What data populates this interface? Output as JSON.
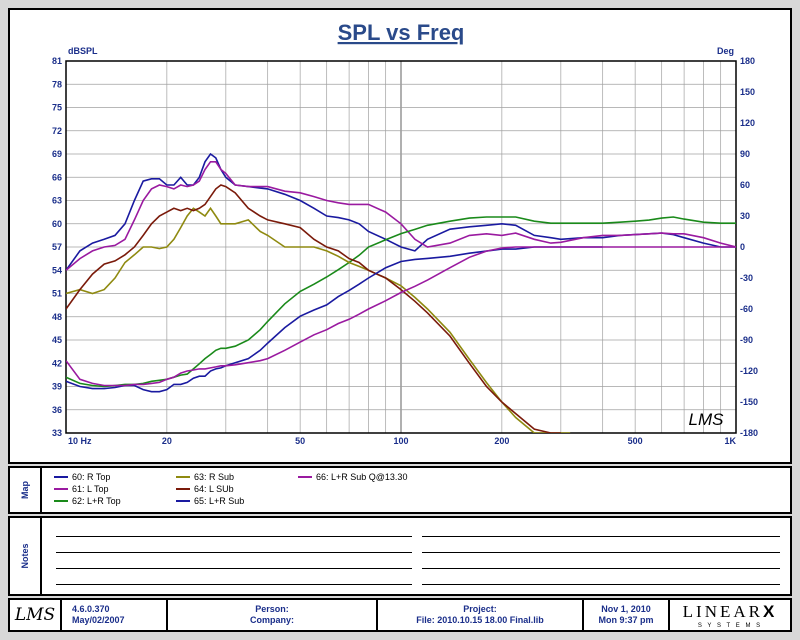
{
  "chart_data": {
    "type": "line",
    "title": "SPL vs Freq",
    "ylabel_left": "dBSPL",
    "ylabel_right": "Deg",
    "x_scale": "log",
    "xlim": [
      10,
      1000
    ],
    "ylim": [
      33,
      81
    ],
    "y2lim": [
      -180,
      180
    ],
    "x_tick_labels": [
      {
        "v": 10,
        "t": "10  Hz"
      },
      {
        "v": 20,
        "t": "20"
      },
      {
        "v": 50,
        "t": "50"
      },
      {
        "v": 100,
        "t": "100"
      },
      {
        "v": 200,
        "t": "200"
      },
      {
        "v": 500,
        "t": "500"
      },
      {
        "v": 1000,
        "t": "1K"
      }
    ],
    "y_ticks": [
      33,
      36,
      39,
      42,
      45,
      48,
      51,
      54,
      57,
      60,
      63,
      66,
      69,
      72,
      75,
      78,
      81
    ],
    "y2_ticks": [
      -180,
      -150,
      -120,
      -90,
      -60,
      -30,
      0,
      30,
      60,
      90,
      120,
      150,
      180
    ],
    "grid": true,
    "watermark": "LMS",
    "series": [
      {
        "name": "60: R Top",
        "color": "#1a1aa0",
        "x": [
          10,
          11,
          12,
          13,
          14,
          15,
          16,
          17,
          18,
          19,
          20,
          21,
          22,
          23,
          24,
          25,
          26,
          27,
          28,
          29,
          30,
          32,
          35,
          38,
          40,
          45,
          50,
          55,
          60,
          65,
          70,
          75,
          80,
          90,
          100,
          110,
          120,
          140,
          160,
          180,
          200,
          220,
          250,
          280,
          300,
          350,
          400,
          450,
          500,
          550,
          600,
          650,
          700,
          800,
          900,
          1000
        ],
        "y": [
          54,
          56.5,
          57.5,
          58,
          58.5,
          60,
          63,
          65.5,
          65.8,
          65.8,
          65,
          65,
          66,
          65,
          65,
          66,
          68,
          69,
          68.5,
          67,
          66,
          65,
          64.8,
          64.6,
          64.5,
          63.8,
          63,
          62,
          61,
          60.8,
          60.5,
          60,
          59,
          58,
          57,
          56.5,
          58,
          59.3,
          59.6,
          59.8,
          60,
          59.8,
          58.5,
          58.2,
          58,
          58.2,
          58.2,
          58.5,
          58.6,
          58.7,
          58.8,
          58.6,
          58.2,
          57.5,
          57,
          57
        ]
      },
      {
        "name": "61: L Top",
        "color": "#9a1aa0",
        "x": [
          10,
          11,
          12,
          13,
          14,
          15,
          16,
          17,
          18,
          19,
          20,
          21,
          22,
          23,
          24,
          25,
          26,
          27,
          28,
          29,
          30,
          32,
          35,
          38,
          40,
          45,
          50,
          55,
          60,
          65,
          70,
          75,
          80,
          90,
          100,
          110,
          120,
          140,
          160,
          180,
          200,
          220,
          250,
          280,
          300,
          350,
          400,
          450,
          500,
          550,
          600,
          650,
          700,
          800,
          900,
          1000
        ],
        "y": [
          54,
          55.5,
          56.5,
          57,
          57.2,
          58,
          60.5,
          63,
          64.5,
          65,
          64.8,
          64.5,
          65,
          64.8,
          65,
          65.5,
          67,
          68,
          68,
          67,
          66.5,
          65,
          64.8,
          64.8,
          64.8,
          64.2,
          64,
          63.5,
          63,
          62.7,
          62.5,
          62.5,
          62.5,
          61.5,
          60,
          58,
          57,
          57.5,
          58.5,
          58.7,
          58.5,
          58.8,
          58,
          57.5,
          57.6,
          58.2,
          58.5,
          58.5,
          58.6,
          58.7,
          58.8,
          58.7,
          58.7,
          58.2,
          57.5,
          57
        ]
      },
      {
        "name": "62: L+R Top",
        "color": "#1a8a1a",
        "x": [
          10,
          11,
          12,
          13,
          14,
          15,
          16,
          17,
          18,
          19,
          20,
          21,
          22,
          23,
          24,
          25,
          26,
          27,
          28,
          29,
          30,
          32,
          35,
          38,
          40,
          45,
          50,
          55,
          60,
          65,
          70,
          75,
          80,
          90,
          100,
          110,
          120,
          140,
          160,
          180,
          200,
          220,
          250,
          280,
          300,
          350,
          400,
          450,
          500,
          550,
          600,
          650,
          700,
          800,
          900,
          1000
        ],
        "y": [
          -126,
          -132,
          -134,
          -135,
          -134,
          -133,
          -133,
          -132,
          -130,
          -129,
          -128,
          -126,
          -124,
          -123,
          -118,
          -113,
          -108,
          -104,
          -100,
          -98,
          -98,
          -96,
          -90,
          -80,
          -72,
          -55,
          -43,
          -36,
          -29,
          -22,
          -15,
          -8,
          0,
          7,
          13,
          17,
          21,
          25,
          28,
          29,
          29,
          29,
          25,
          23,
          23,
          23,
          23,
          24,
          25,
          26,
          28,
          29,
          27,
          24,
          23,
          23
        ]
      },
      {
        "name": "63: R Sub",
        "color": "#8f8a10",
        "x": [
          10,
          11,
          12,
          13,
          14,
          15,
          16,
          17,
          18,
          19,
          20,
          21,
          22,
          23,
          24,
          25,
          26,
          27,
          28,
          29,
          30,
          32,
          35,
          38,
          40,
          45,
          50,
          55,
          60,
          65,
          70,
          75,
          80,
          90,
          100,
          110,
          120,
          140,
          160,
          180,
          200,
          220,
          250,
          280,
          300,
          320
        ],
        "y": [
          51,
          51.5,
          51,
          51.5,
          53,
          55,
          56,
          57,
          57,
          56.8,
          57,
          58,
          59.5,
          61,
          62,
          61.5,
          61,
          62,
          61,
          60,
          60,
          60,
          60.5,
          59,
          58.5,
          57,
          57,
          57,
          56.5,
          55.8,
          55,
          54.5,
          54,
          53,
          52,
          50.5,
          49,
          46,
          42.5,
          39.5,
          37,
          35,
          33,
          33,
          33,
          33
        ]
      },
      {
        "name": "64: L SUb",
        "color": "#7a1a0a",
        "x": [
          10,
          11,
          12,
          13,
          14,
          15,
          16,
          17,
          18,
          19,
          20,
          21,
          22,
          23,
          24,
          25,
          26,
          27,
          28,
          29,
          30,
          32,
          35,
          38,
          40,
          45,
          50,
          55,
          60,
          65,
          70,
          75,
          80,
          90,
          100,
          110,
          120,
          140,
          160,
          180,
          200,
          220,
          250,
          280,
          300
        ],
        "y": [
          49,
          51.5,
          53.5,
          54.8,
          55.2,
          56,
          57,
          58.5,
          60,
          61,
          61.5,
          62,
          61.7,
          62,
          61.7,
          62,
          62.5,
          63.5,
          64.5,
          65,
          64.8,
          64,
          62,
          61,
          60.5,
          60,
          59.5,
          58,
          57,
          56.5,
          55.5,
          55,
          54,
          53,
          51.5,
          50,
          48.5,
          45.5,
          42,
          39,
          37,
          35.5,
          33.5,
          33,
          33
        ]
      },
      {
        "name": "65: L+R Sub",
        "color": "#1a1aa0",
        "x": [
          10,
          11,
          12,
          13,
          14,
          15,
          16,
          17,
          18,
          19,
          20,
          21,
          22,
          23,
          24,
          25,
          26,
          27,
          28,
          29,
          30,
          32,
          35,
          38,
          40,
          45,
          50,
          55,
          60,
          65,
          70,
          75,
          80,
          90,
          100,
          110,
          120,
          140,
          160,
          180,
          200,
          220,
          250,
          280,
          300,
          350,
          400
        ],
        "y": [
          -130,
          -135,
          -137,
          -137,
          -136,
          -134,
          -134,
          -138,
          -140,
          -140,
          -138,
          -133,
          -133,
          -131,
          -127,
          -125,
          -125,
          -120,
          -118,
          -117,
          -115,
          -112,
          -108,
          -100,
          -93,
          -78,
          -67,
          -61,
          -56,
          -48,
          -42,
          -36,
          -30,
          -20,
          -14,
          -12,
          -11,
          -9,
          -6,
          -4,
          -2,
          -2,
          0,
          0,
          0,
          0,
          0
        ]
      },
      {
        "name": "66: L+R Sub Q@13.30",
        "color": "#9a1aa0",
        "x": [
          10,
          11,
          12,
          13,
          14,
          15,
          16,
          17,
          18,
          19,
          20,
          21,
          22,
          23,
          24,
          25,
          26,
          27,
          28,
          29,
          30,
          32,
          35,
          38,
          40,
          45,
          50,
          55,
          60,
          65,
          70,
          75,
          80,
          90,
          100,
          110,
          120,
          140,
          160,
          180,
          200,
          220,
          250,
          280,
          300,
          350,
          400,
          450,
          500,
          550,
          600,
          650,
          700,
          800,
          900,
          1000
        ],
        "y": [
          -110,
          -128,
          -132,
          -134,
          -134,
          -134,
          -133,
          -133,
          -132,
          -131,
          -128,
          -126,
          -122,
          -120,
          -119,
          -118,
          -118,
          -117,
          -116,
          -115,
          -115,
          -114,
          -112,
          -110,
          -108,
          -100,
          -92,
          -85,
          -80,
          -74,
          -70,
          -65,
          -60,
          -52,
          -44,
          -38,
          -32,
          -20,
          -10,
          -4,
          -1,
          0,
          0,
          0,
          0,
          0,
          0,
          0,
          0,
          0,
          0,
          0,
          0,
          0,
          0,
          0
        ]
      }
    ]
  },
  "legend": [
    {
      "label": "60: R Top",
      "color": "#1a1aa0"
    },
    {
      "label": "61: L Top",
      "color": "#9a1aa0"
    },
    {
      "label": "62: L+R Top",
      "color": "#1a8a1a"
    },
    {
      "label": "63: R Sub",
      "color": "#8f8a10"
    },
    {
      "label": "64: L SUb",
      "color": "#7a1a0a"
    },
    {
      "label": "65: L+R Sub",
      "color": "#1a1aa0"
    },
    {
      "label": "66: L+R Sub Q@13.30",
      "color": "#9a1aa0"
    }
  ],
  "tabs": {
    "map": "Map",
    "notes": "Notes"
  },
  "footer": {
    "logo": "LMS",
    "version": "4.6.0.370",
    "version_date": "May/02/2007",
    "person_label": "Person:",
    "company_label": "Company:",
    "project_label": "Project:",
    "file_label": "File: 2010.10.15 18.00 Final.lib",
    "date": "Nov  1, 2010",
    "time": "Mon  9:37 pm",
    "brand": "LINEAR",
    "brand_x": "X",
    "brand_sub": "S Y S T E M S"
  },
  "colors": {
    "axis_text": "#1a2e8a",
    "grid": "#a0a0a0",
    "title": "#2a4a8a"
  }
}
